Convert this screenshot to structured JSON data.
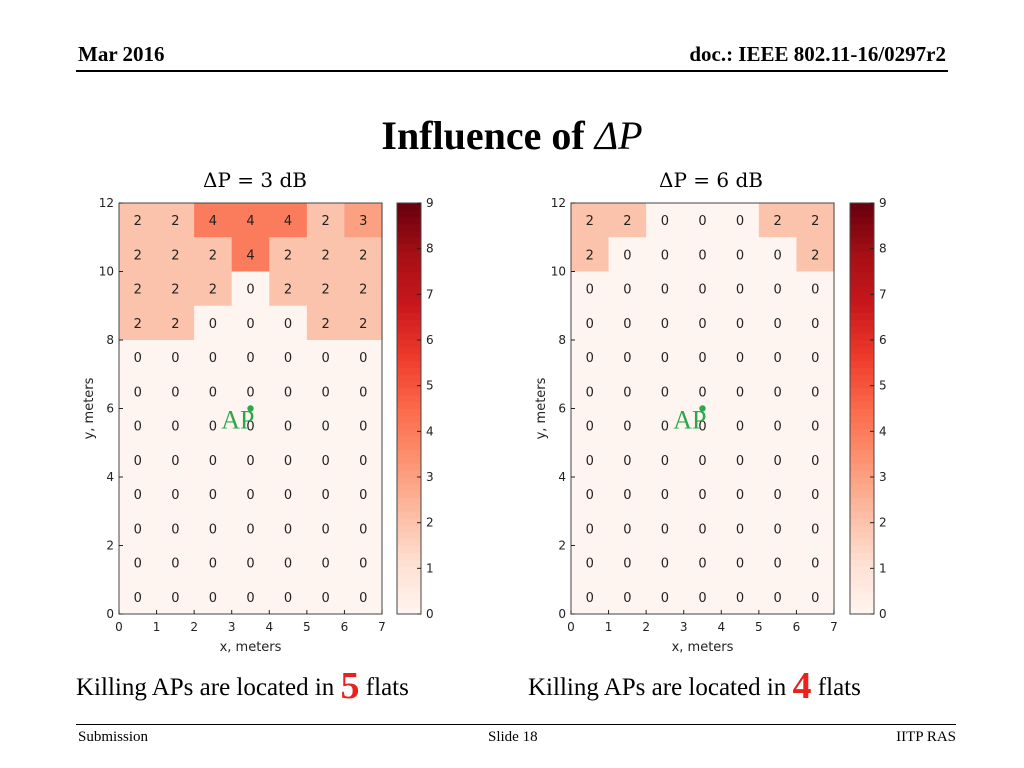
{
  "header": {
    "date": "Mar 2016",
    "doc": "doc.: IEEE 802.11-16/0297r2"
  },
  "slide_title": {
    "text": "Influence of ",
    "symbol": "ΔP"
  },
  "captions": [
    {
      "before": "Killing APs are located in ",
      "number": "5",
      "after": " flats"
    },
    {
      "before": "Killing APs are located in ",
      "number": "4",
      "after": " flats"
    }
  ],
  "footer": {
    "left": "Submission",
    "center": "Slide 18",
    "right": "IITP RAS"
  },
  "chart_data": [
    {
      "type": "heatmap",
      "title": "ΔP = 3 dB",
      "xlabel": "x, meters",
      "ylabel": "y, meters",
      "xlim": [
        0,
        7
      ],
      "ylim": [
        0,
        12
      ],
      "x_ticks": [
        0,
        1,
        2,
        3,
        4,
        5,
        6,
        7
      ],
      "y_ticks": [
        0,
        2,
        4,
        6,
        8,
        10,
        12
      ],
      "colorbar": {
        "min": 0,
        "max": 9,
        "ticks": [
          0,
          1,
          2,
          3,
          4,
          5,
          6,
          7,
          8,
          9
        ],
        "colormap": "Reds"
      },
      "ap": {
        "label": "AP",
        "x": 3.5,
        "y": 6,
        "color": "#2ca84a"
      },
      "grid_rows_top_to_bottom": [
        [
          2,
          2,
          4,
          4,
          4,
          2,
          3
        ],
        [
          2,
          2,
          2,
          4,
          2,
          2,
          2
        ],
        [
          2,
          2,
          2,
          0,
          2,
          2,
          2
        ],
        [
          2,
          2,
          0,
          0,
          0,
          2,
          2
        ],
        [
          0,
          0,
          0,
          0,
          0,
          0,
          0
        ],
        [
          0,
          0,
          0,
          0,
          0,
          0,
          0
        ],
        [
          0,
          0,
          0,
          0,
          0,
          0,
          0
        ],
        [
          0,
          0,
          0,
          0,
          0,
          0,
          0
        ],
        [
          0,
          0,
          0,
          0,
          0,
          0,
          0
        ],
        [
          0,
          0,
          0,
          0,
          0,
          0,
          0
        ],
        [
          0,
          0,
          0,
          0,
          0,
          0,
          0
        ],
        [
          0,
          0,
          0,
          0,
          0,
          0,
          0
        ]
      ]
    },
    {
      "type": "heatmap",
      "title": "ΔP = 6 dB",
      "xlabel": "x, meters",
      "ylabel": "y, meters",
      "xlim": [
        0,
        7
      ],
      "ylim": [
        0,
        12
      ],
      "x_ticks": [
        0,
        1,
        2,
        3,
        4,
        5,
        6,
        7
      ],
      "y_ticks": [
        0,
        2,
        4,
        6,
        8,
        10,
        12
      ],
      "colorbar": {
        "min": 0,
        "max": 9,
        "ticks": [
          0,
          1,
          2,
          3,
          4,
          5,
          6,
          7,
          8,
          9
        ],
        "colormap": "Reds"
      },
      "ap": {
        "label": "AP",
        "x": 3.5,
        "y": 6,
        "color": "#2ca84a"
      },
      "grid_rows_top_to_bottom": [
        [
          2,
          2,
          0,
          0,
          0,
          2,
          2
        ],
        [
          2,
          0,
          0,
          0,
          0,
          0,
          2
        ],
        [
          0,
          0,
          0,
          0,
          0,
          0,
          0
        ],
        [
          0,
          0,
          0,
          0,
          0,
          0,
          0
        ],
        [
          0,
          0,
          0,
          0,
          0,
          0,
          0
        ],
        [
          0,
          0,
          0,
          0,
          0,
          0,
          0
        ],
        [
          0,
          0,
          0,
          0,
          0,
          0,
          0
        ],
        [
          0,
          0,
          0,
          0,
          0,
          0,
          0
        ],
        [
          0,
          0,
          0,
          0,
          0,
          0,
          0
        ],
        [
          0,
          0,
          0,
          0,
          0,
          0,
          0
        ],
        [
          0,
          0,
          0,
          0,
          0,
          0,
          0
        ],
        [
          0,
          0,
          0,
          0,
          0,
          0,
          0
        ]
      ]
    }
  ]
}
